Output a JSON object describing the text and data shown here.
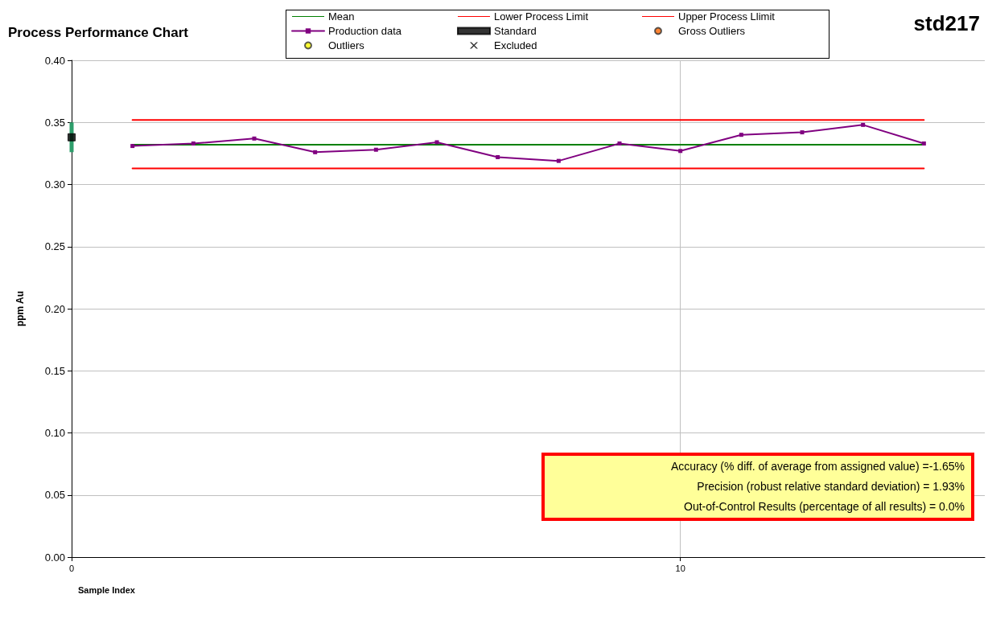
{
  "chart_data": {
    "type": "line",
    "title": "Process Performance Chart",
    "subtitle": "std217",
    "xlabel": "Sample Index",
    "ylabel": "ppm Au",
    "xlim": [
      0,
      15
    ],
    "xticks": [
      0,
      10
    ],
    "ylim": [
      0,
      0.4
    ],
    "yticks": [
      {
        "value": 0,
        "label": "0.00"
      },
      {
        "value": 0.05,
        "label": "0.05"
      },
      {
        "value": 0.1,
        "label": "0.10"
      },
      {
        "value": 0.15,
        "label": "0.15"
      },
      {
        "value": 0.2,
        "label": "0.20"
      },
      {
        "value": 0.25,
        "label": "0.25"
      },
      {
        "value": 0.3,
        "label": "0.30"
      },
      {
        "value": 0.35,
        "label": "0.35"
      },
      {
        "value": 0.4,
        "label": "0.40"
      }
    ],
    "grid": true,
    "legend": "top",
    "series": [
      {
        "name": "Mean",
        "color": "#008000",
        "marker": "none",
        "x": [
          1,
          14
        ],
        "values": [
          0.332,
          0.332
        ]
      },
      {
        "name": "Lower Process Limit",
        "color": "#ff0000",
        "marker": "none",
        "x": [
          1,
          14
        ],
        "values": [
          0.313,
          0.313
        ]
      },
      {
        "name": "Upper Process Llimit",
        "color": "#ff0000",
        "marker": "none",
        "x": [
          1,
          14
        ],
        "values": [
          0.352,
          0.352
        ]
      },
      {
        "name": "Production data",
        "color": "#800080",
        "marker": "square",
        "x": [
          1,
          2,
          3,
          4,
          5,
          6,
          7,
          8,
          9,
          10,
          11,
          12,
          13,
          14
        ],
        "values": [
          0.331,
          0.333,
          0.337,
          0.326,
          0.328,
          0.334,
          0.322,
          0.319,
          0.333,
          0.327,
          0.34,
          0.342,
          0.348,
          0.333
        ]
      },
      {
        "name": "Standard",
        "type": "scatter",
        "color": "#000000",
        "marker": "square",
        "x": [
          0
        ],
        "values": [
          0.338
        ],
        "errors": [
          [
            0.326,
            0.35
          ]
        ]
      },
      {
        "name": "Gross Outliers",
        "type": "scatter",
        "color": "#ff6600",
        "marker": "circle"
      },
      {
        "name": "Outliers",
        "type": "scatter",
        "color": "#ffff00",
        "marker": "circle"
      },
      {
        "name": "Excluded",
        "type": "scatter",
        "color": "#000000",
        "marker": "cross"
      }
    ],
    "annotations": [
      "Accuracy (% diff. of average from assigned value) =-1.65%",
      "Precision (robust relative standard deviation) = 1.93%",
      "Out-of-Control Results (percentage of all results) = 0.0%"
    ]
  }
}
